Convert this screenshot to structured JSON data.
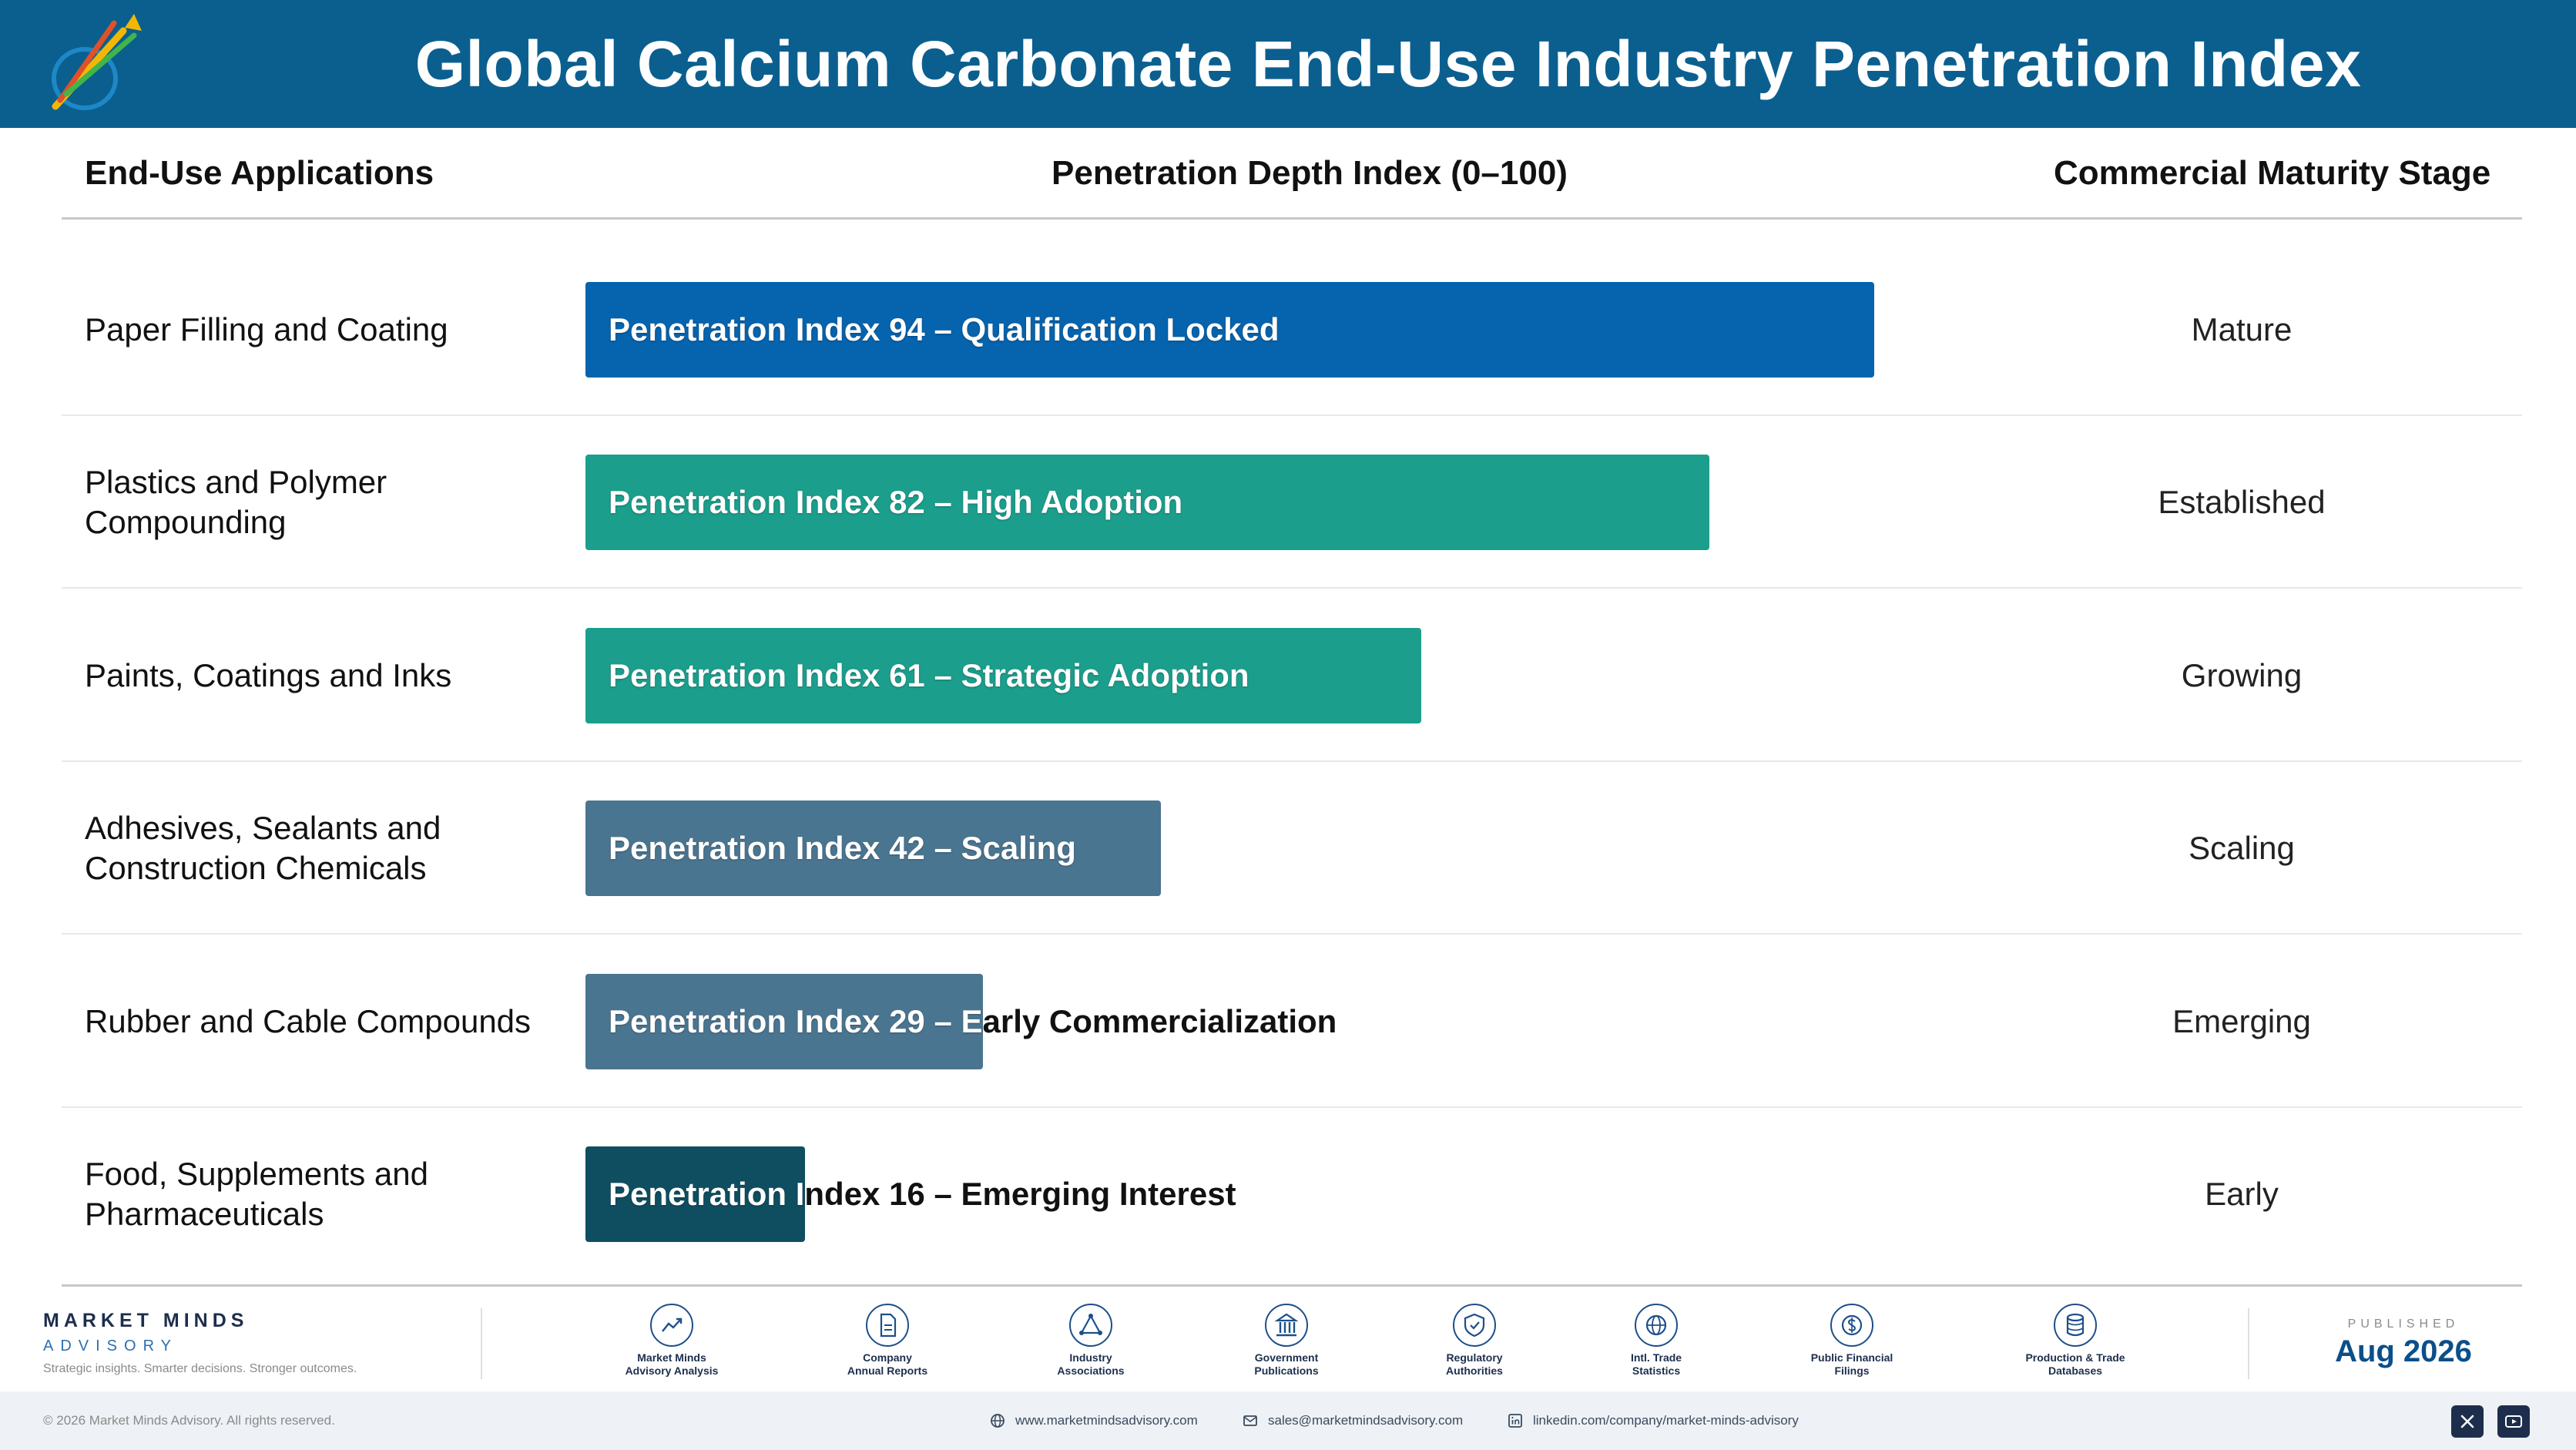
{
  "header": {
    "title": "Global Calcium Carbonate End-Use Industry Penetration Index",
    "logo_icon": "rising-arrows-logo-icon"
  },
  "columns": {
    "applications": "End-Use Applications",
    "index": "Penetration Depth Index (0–100)",
    "stage": "Commercial Maturity Stage"
  },
  "chart_data": {
    "type": "bar",
    "orientation": "horizontal",
    "xlim": [
      0,
      100
    ],
    "categories": [
      "Paper Filling and Coating",
      "Plastics and Polymer\nCompounding",
      "Paints, Coatings and Inks",
      "Adhesives, Sealants and\nConstruction Chemicals",
      "Rubber and Cable Compounds",
      "Food, Supplements and\nPharmaceuticals"
    ],
    "values": [
      94,
      82,
      61,
      42,
      29,
      16
    ],
    "bar_labels": [
      "Penetration Index 94 – Qualification Locked",
      "Penetration Index 82 – High Adoption",
      "Penetration Index 61 – Strategic Adoption",
      "Penetration Index 42 – Scaling",
      "Penetration Index 29 – Early Commercialization",
      "Penetration Index 16 – Emerging Interest"
    ],
    "stages": [
      "Mature",
      "Established",
      "Growing",
      "Scaling",
      "Emerging",
      "Early"
    ],
    "colors": [
      "#0663ad",
      "#1b9e8c",
      "#1b9e8c",
      "#4a7590",
      "#4a7590",
      "#0f4e60"
    ]
  },
  "footer": {
    "brand_name": "MARKET MINDS",
    "brand_sub": "ADVISORY",
    "tagline": "Strategic insights. Smarter decisions. Stronger outcomes.",
    "sources": [
      {
        "label": "Market Minds\nAdvisory Analysis",
        "icon": "trend-line-icon"
      },
      {
        "label": "Company\nAnnual Reports",
        "icon": "document-icon"
      },
      {
        "label": "Industry\nAssociations",
        "icon": "network-icon"
      },
      {
        "label": "Government\nPublications",
        "icon": "government-building-icon"
      },
      {
        "label": "Regulatory\nAuthorities",
        "icon": "shield-check-icon"
      },
      {
        "label": "Intl. Trade\nStatistics",
        "icon": "globe-icon"
      },
      {
        "label": "Public Financial\nFilings",
        "icon": "dollar-coin-icon"
      },
      {
        "label": "Production & Trade\nDatabases",
        "icon": "database-icon"
      }
    ],
    "published_label": "PUBLISHED",
    "published_date": "Aug 2026",
    "copyright": "© 2026 Market Minds Advisory. All rights reserved.",
    "website": "www.marketmindsadvisory.com",
    "email": "sales@marketmindsadvisory.com",
    "linkedin": "linkedin.com/company/market-minds-advisory"
  }
}
